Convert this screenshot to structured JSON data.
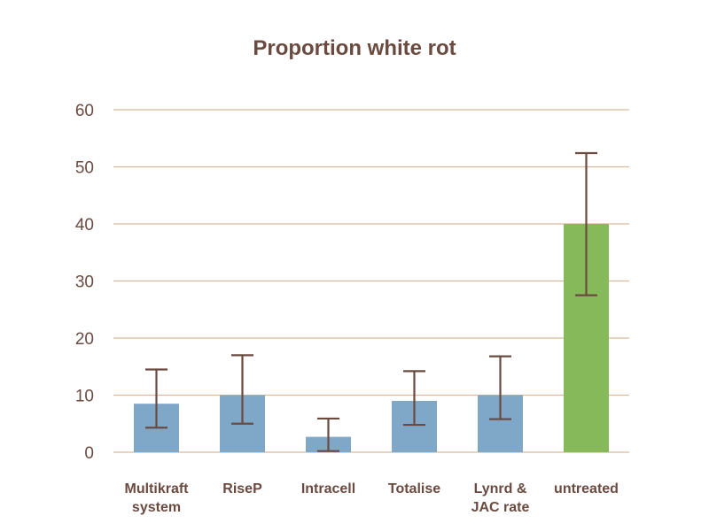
{
  "chart_data": {
    "type": "bar",
    "title": "Proportion white rot",
    "xlabel": "",
    "ylabel": "",
    "ylim": [
      0,
      60
    ],
    "yticks": [
      0,
      10,
      20,
      30,
      40,
      50,
      60
    ],
    "grid": true,
    "legend": "none",
    "categories": [
      [
        "Multikraft",
        "system"
      ],
      [
        "RiseP"
      ],
      [
        "Intracell"
      ],
      [
        "Totalise"
      ],
      [
        "Lynrd &",
        "JAC rate"
      ],
      [
        "untreated"
      ]
    ],
    "values": [
      8.5,
      10,
      2.7,
      9,
      10,
      40
    ],
    "error_low": [
      4.3,
      5,
      0.2,
      4.8,
      5.8,
      27.5
    ],
    "error_high": [
      14.5,
      17,
      5.9,
      14.2,
      16.8,
      52.4
    ],
    "bar_colors": [
      "#7ea7c8",
      "#7ea7c8",
      "#7ea7c8",
      "#7ea7c8",
      "#7ea7c8",
      "#85b95a"
    ],
    "error_color": "#6b4a40",
    "grid_color": "#d9b99a",
    "text_color": "#6b4a40"
  }
}
